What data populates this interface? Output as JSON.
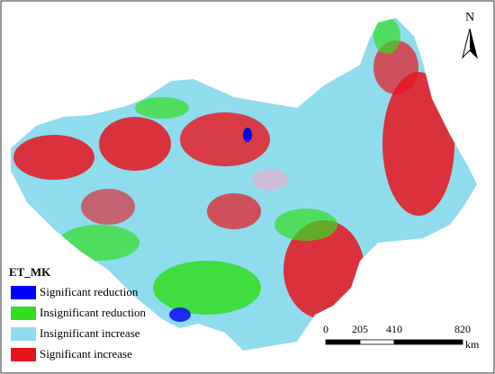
{
  "north": "N",
  "legend": {
    "title": "ET_MK",
    "items": [
      {
        "label": "Significant reduction",
        "color": "#0000ff"
      },
      {
        "label": "Insignificant reduction",
        "color": "#33dd22"
      },
      {
        "label": "Insignificant increase",
        "color": "#8fdcef"
      },
      {
        "label": "Significant increase",
        "color": "#e8141c"
      }
    ]
  },
  "scale_bar": {
    "ticks": [
      0,
      205,
      410,
      820
    ],
    "unit": "km"
  }
}
